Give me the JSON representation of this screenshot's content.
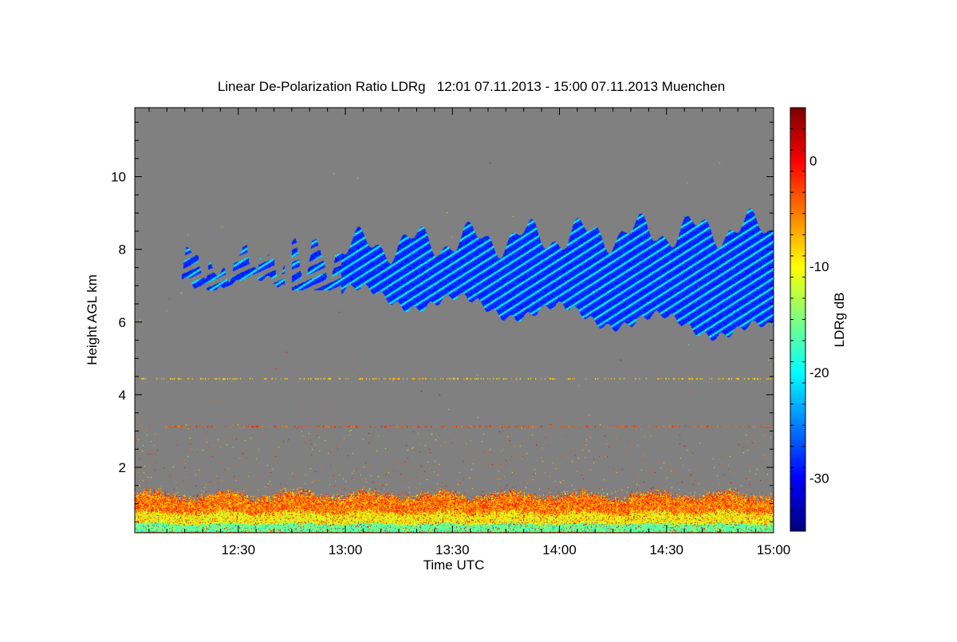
{
  "chart_data": {
    "type": "heatmap",
    "title": "Linear De-Polarization Ratio LDRg   12:01 07.11.2013 - 15:00 07.11.2013 Muenchen",
    "xlabel": "Time UTC",
    "ylabel": "Height AGL km",
    "xlim": [
      "12:01",
      "15:00"
    ],
    "ylim": [
      0.2,
      11.9
    ],
    "x_ticks": [
      "12:30",
      "13:00",
      "13:30",
      "14:00",
      "14:30",
      "15:00"
    ],
    "y_ticks": [
      2,
      4,
      6,
      8,
      10
    ],
    "background_color": "#808080",
    "colorbar": {
      "label": "LDRg dB",
      "range": [
        -35,
        5
      ],
      "ticks": [
        0,
        -10,
        -20,
        -30
      ],
      "colormap": "jet"
    },
    "features": [
      {
        "type": "cirrus_band",
        "time_range": [
          "12:14",
          "15:00"
        ],
        "base_km": [
          7.2,
          5.7
        ],
        "top_km": [
          7.6,
          8.6
        ],
        "ldr_db": [
          -30,
          -22
        ]
      },
      {
        "type": "boundary_layer",
        "time_range": [
          "12:01",
          "15:00"
        ],
        "height_km": [
          0.2,
          1.1
        ],
        "ldr_db": [
          -22,
          0
        ]
      },
      {
        "type": "speckle_layer",
        "height_km": 3.15,
        "ldr_db": -3
      },
      {
        "type": "speckle_layer",
        "height_km": 4.45,
        "ldr_db": -8
      }
    ]
  }
}
